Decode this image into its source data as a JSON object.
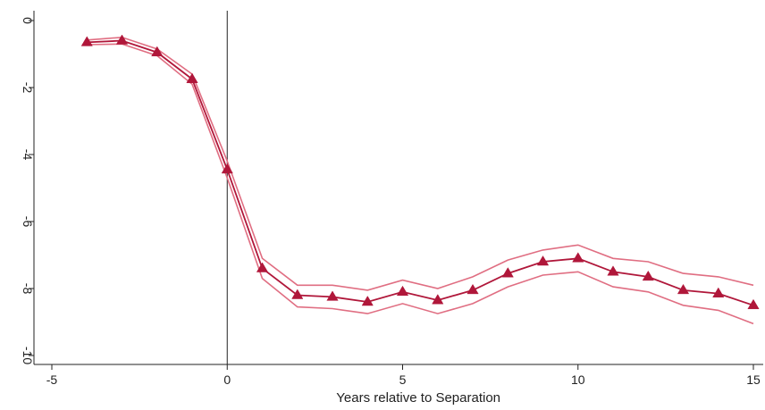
{
  "chart_data": {
    "type": "line",
    "title": "",
    "xlabel": "Years relative to Separation",
    "ylabel": "",
    "xlim": [
      -5,
      15
    ],
    "ylim": [
      -10,
      0
    ],
    "x_ticks": [
      -5,
      0,
      5,
      10,
      15
    ],
    "y_ticks": [
      0,
      -2,
      -4,
      -6,
      -8,
      -10
    ],
    "x_tick_labels": [
      "-5",
      "0",
      "5",
      "10",
      "15"
    ],
    "y_tick_labels": [
      "0",
      "-2",
      "-4",
      "-6",
      "-8",
      "-10"
    ],
    "reference_line_x": 0,
    "grid": false,
    "colors": {
      "series": "#b0173a",
      "band": "#e06e82",
      "axis": "#222222"
    },
    "x": [
      -4,
      -3,
      -2,
      -1,
      0,
      1,
      2,
      3,
      4,
      5,
      6,
      7,
      8,
      9,
      10,
      11,
      12,
      13,
      14,
      15
    ],
    "series": [
      {
        "marker": "triangle",
        "values": [
          -0.65,
          -0.6,
          -0.95,
          -1.75,
          -4.45,
          -7.4,
          -8.2,
          -8.25,
          -8.4,
          -8.1,
          -8.35,
          -8.05,
          -7.55,
          -7.2,
          -7.1,
          -7.5,
          -7.65,
          -8.05,
          -8.15,
          -8.5
        ]
      }
    ],
    "confidence_band": {
      "upper": [
        -0.58,
        -0.5,
        -0.85,
        -1.6,
        -4.2,
        -7.1,
        -7.9,
        -7.9,
        -8.05,
        -7.75,
        -8.0,
        -7.65,
        -7.15,
        -6.85,
        -6.7,
        -7.1,
        -7.2,
        -7.55,
        -7.65,
        -7.9
      ],
      "lower": [
        -0.72,
        -0.7,
        -1.05,
        -1.9,
        -4.7,
        -7.7,
        -8.55,
        -8.6,
        -8.75,
        -8.45,
        -8.75,
        -8.45,
        -7.95,
        -7.6,
        -7.5,
        -7.95,
        -8.1,
        -8.5,
        -8.65,
        -9.05
      ]
    }
  }
}
